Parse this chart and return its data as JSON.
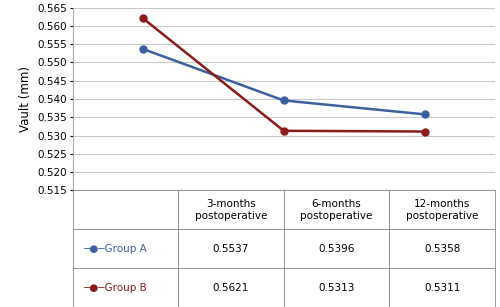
{
  "x_positions": [
    0,
    1,
    2
  ],
  "group_a_values": [
    0.5537,
    0.5396,
    0.5358
  ],
  "group_b_values": [
    0.5621,
    0.5313,
    0.5311
  ],
  "group_a_color": "#3B5FA0",
  "group_b_color": "#8B1A1A",
  "ylabel": "Vault (mm)",
  "ylim": [
    0.515,
    0.565
  ],
  "yticks": [
    0.515,
    0.52,
    0.525,
    0.53,
    0.535,
    0.54,
    0.545,
    0.55,
    0.555,
    0.56,
    0.565
  ],
  "table_col_labels": [
    "3-months\npostoperative",
    "6-months\npostoperative",
    "12-months\npostoperative"
  ],
  "table_row_a_label": "─●─Group A",
  "table_row_b_label": "─●─Group B",
  "table_data": [
    [
      "0.5537",
      "0.5396",
      "0.5358"
    ],
    [
      "0.5621",
      "0.5313",
      "0.5311"
    ]
  ],
  "background_color": "#ffffff",
  "grid_color": "#c8c8c8"
}
